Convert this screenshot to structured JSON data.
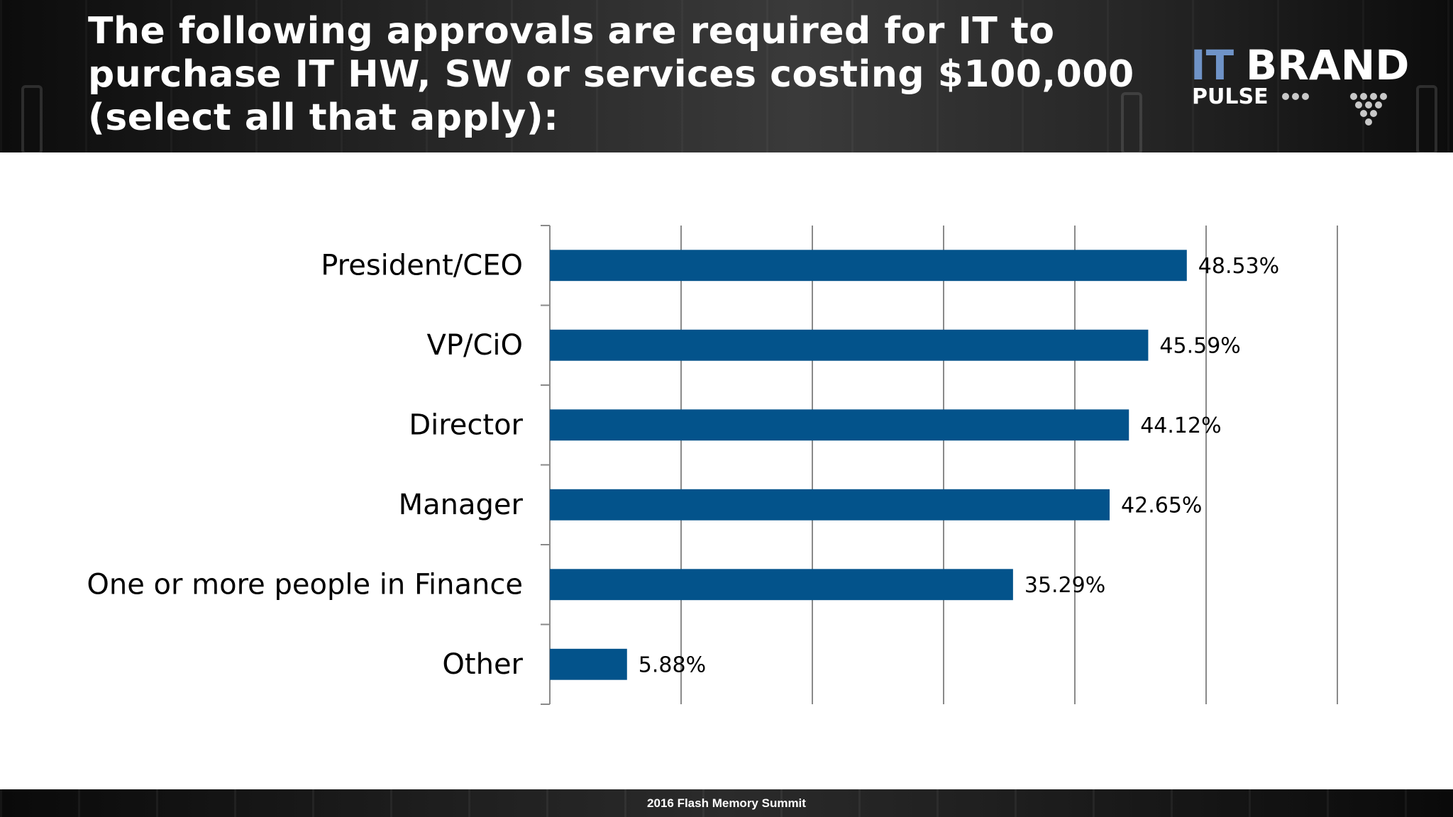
{
  "slide": {
    "title": "The following approvals are required for IT to purchase IT HW, SW or services costing $100,000 (select all that apply):",
    "footer": "2016 Flash Memory Summit"
  },
  "logo": {
    "text_it": "IT",
    "text_brand": "BRAND",
    "text_pulse": "PULSE",
    "colors": {
      "it": "#6f93c7",
      "brand": "#ffffff",
      "pulse": "#ffffff"
    }
  },
  "colors": {
    "header_bg": "#2a2a2a",
    "bar": "#03538b",
    "gridline": "#8a8a8a",
    "text": "#000000"
  },
  "chart_data": {
    "type": "bar",
    "orientation": "horizontal",
    "categories": [
      "President/CEO",
      "VP/CiO",
      "Director",
      "Manager",
      "One or more people in Finance",
      "Other"
    ],
    "values": [
      48.53,
      45.59,
      44.12,
      42.65,
      35.29,
      5.88
    ],
    "data_labels": [
      "48.53%",
      "45.59%",
      "44.12%",
      "42.65%",
      "35.29%",
      "5.88%"
    ],
    "xlim": [
      0,
      60
    ],
    "x_tick_step": 10,
    "x_tick_labels_shown": false,
    "grid": "vertical",
    "legend": "none",
    "title": "",
    "xlabel": "",
    "ylabel": ""
  }
}
